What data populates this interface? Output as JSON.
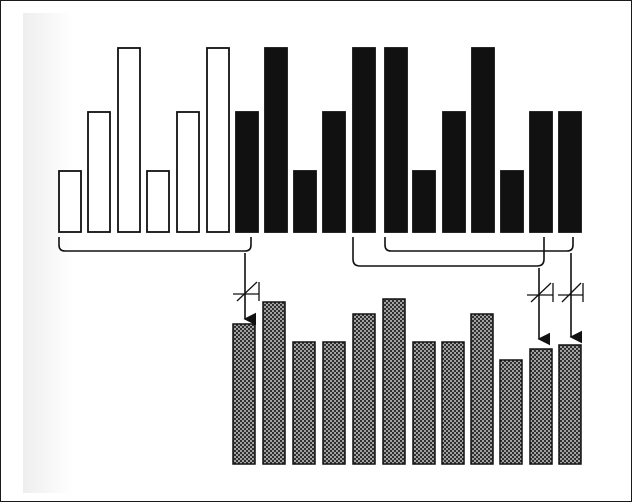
{
  "diagram": {
    "top_row": [
      {
        "level": 0.33,
        "fill": "white"
      },
      {
        "level": 0.65,
        "fill": "white"
      },
      {
        "level": 1.0,
        "fill": "white"
      },
      {
        "level": 0.33,
        "fill": "white"
      },
      {
        "level": 0.65,
        "fill": "white"
      },
      {
        "level": 1.0,
        "fill": "white"
      },
      {
        "level": 0.65,
        "fill": "black"
      },
      {
        "level": 1.0,
        "fill": "black"
      },
      {
        "level": 0.33,
        "fill": "black"
      },
      {
        "level": 0.65,
        "fill": "black"
      },
      {
        "level": 1.0,
        "fill": "black"
      },
      {
        "level": 1.0,
        "fill": "black"
      },
      {
        "level": 0.33,
        "fill": "black"
      },
      {
        "level": 0.65,
        "fill": "black"
      },
      {
        "level": 1.0,
        "fill": "black"
      },
      {
        "level": 0.33,
        "fill": "black"
      },
      {
        "level": 0.65,
        "fill": "black"
      },
      {
        "level": 0.65,
        "fill": "black"
      }
    ],
    "bottom_row": [
      {
        "level": 0.85
      },
      {
        "level": 0.98
      },
      {
        "level": 0.74
      },
      {
        "level": 0.74
      },
      {
        "level": 0.91
      },
      {
        "level": 1.0
      },
      {
        "level": 0.74
      },
      {
        "level": 0.74
      },
      {
        "level": 0.91
      },
      {
        "level": 0.63
      },
      {
        "level": 0.7
      },
      {
        "level": 0.72
      }
    ],
    "colors": {
      "ink": "#111111",
      "paper": "#ffffff",
      "hatch_dark": "#222222",
      "hatch_light": "#cfcfcf"
    }
  }
}
